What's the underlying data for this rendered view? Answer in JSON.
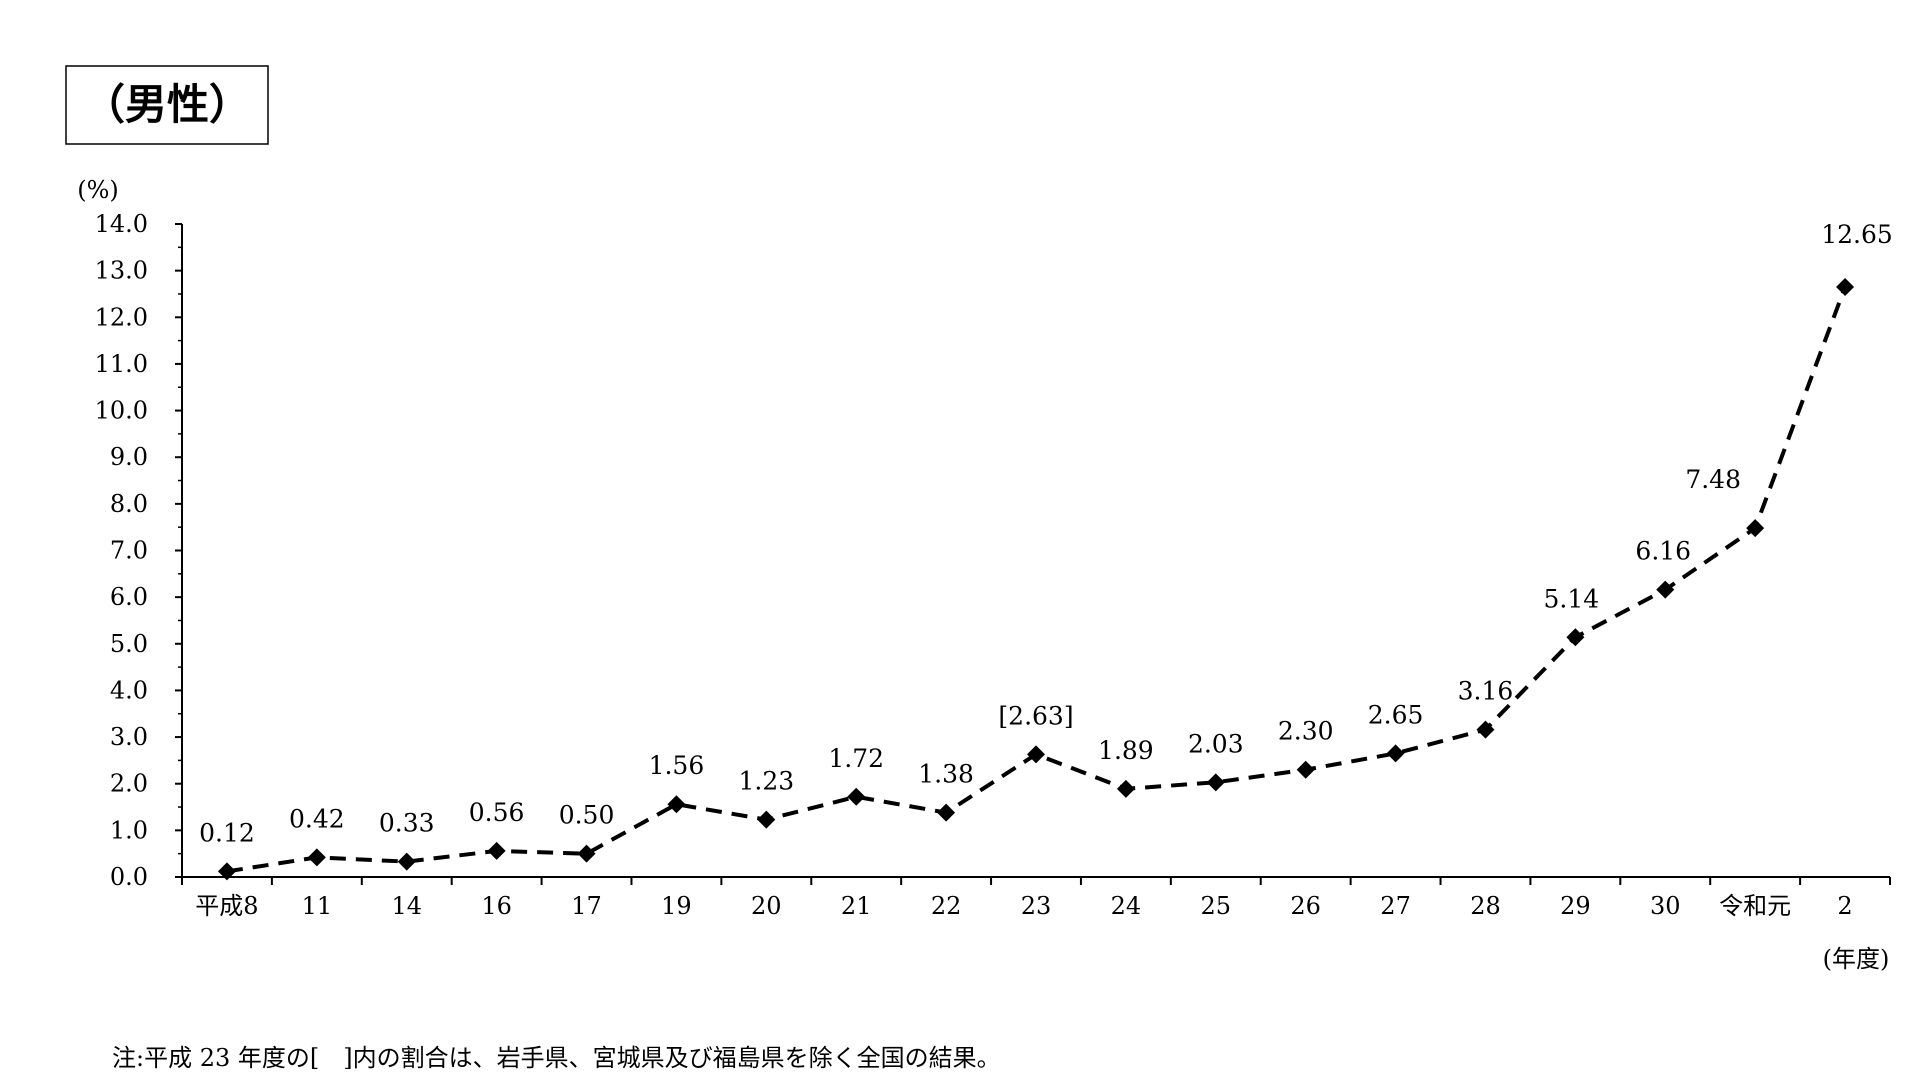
{
  "chart_data": {
    "type": "line",
    "title": "（男性）",
    "ylabel": "(%)",
    "xlabel": "(年度)",
    "ylim": [
      0,
      14
    ],
    "ystep": 1,
    "yticks": [
      "0.0",
      "1.0",
      "2.0",
      "3.0",
      "4.0",
      "5.0",
      "6.0",
      "7.0",
      "8.0",
      "9.0",
      "10.0",
      "11.0",
      "12.0",
      "13.0",
      "14.0"
    ],
    "categories": [
      "平成8",
      "11",
      "14",
      "16",
      "17",
      "19",
      "20",
      "21",
      "22",
      "23",
      "24",
      "25",
      "26",
      "27",
      "28",
      "29",
      "30",
      "令和元",
      "2"
    ],
    "series": [
      {
        "values": [
          0.12,
          0.42,
          0.33,
          0.56,
          0.5,
          1.56,
          1.23,
          1.72,
          1.38,
          2.63,
          1.89,
          2.03,
          2.3,
          2.65,
          3.16,
          5.14,
          6.16,
          7.48,
          12.65
        ],
        "labels": [
          "0.12",
          "0.42",
          "0.33",
          "0.56",
          "0.50",
          "1.56",
          "1.23",
          "1.72",
          "1.38",
          "[2.63]",
          "1.89",
          "2.03",
          "2.30",
          "2.65",
          "3.16",
          "5.14",
          "6.16",
          "7.48",
          "12.65"
        ],
        "line_style": "dashed",
        "marker": "diamond",
        "color": "#000000"
      }
    ],
    "grid": false,
    "legend": "none"
  },
  "note": "注:平成 23 年度の[　]内の割合は、岩手県、宮城県及び福島県を除く全国の結果。"
}
